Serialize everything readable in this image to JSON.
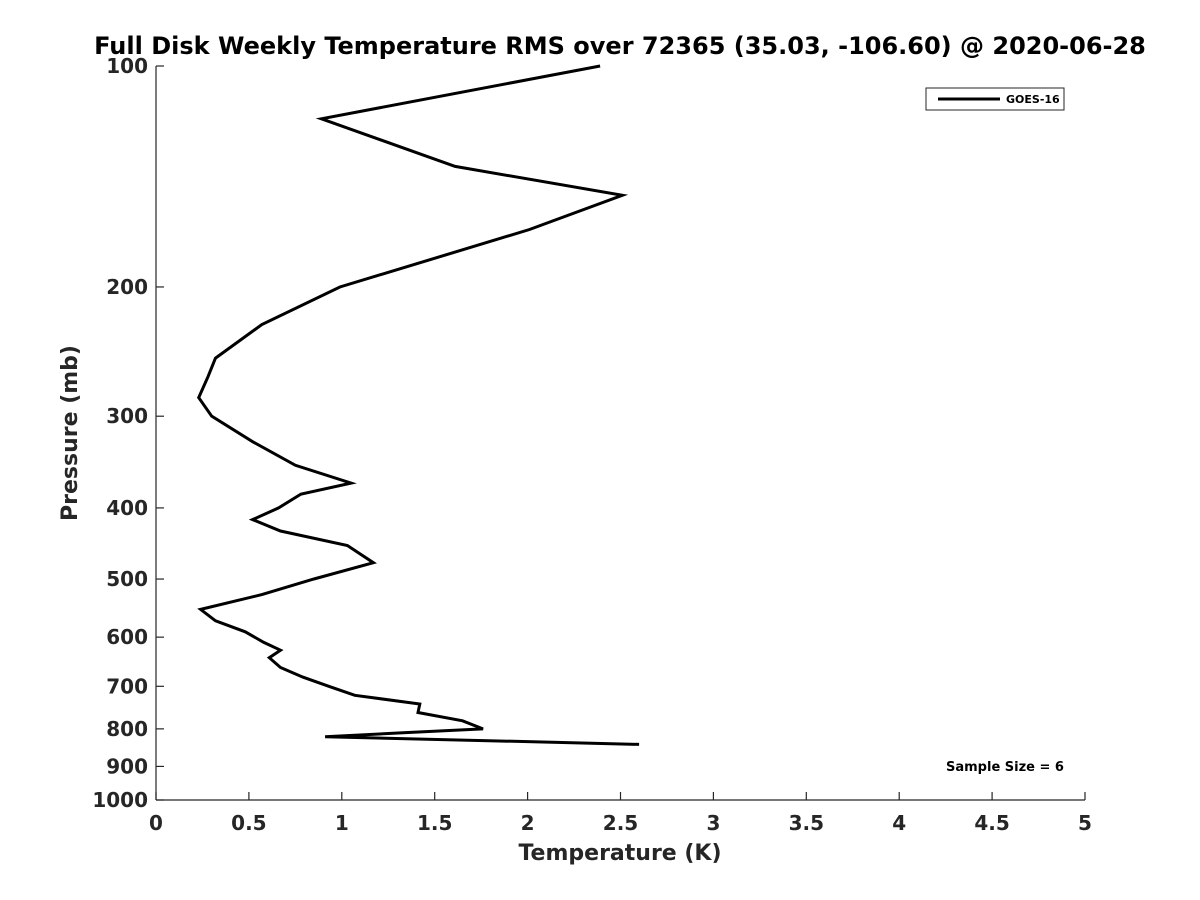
{
  "chart_data": {
    "type": "line",
    "title": "Full Disk Weekly Temperature RMS over 72365 (35.03, -106.60) @ 2020-06-28",
    "xlabel": "Temperature (K)",
    "ylabel": "Pressure (mb)",
    "xlim": [
      0,
      5
    ],
    "ylim": [
      100,
      1000
    ],
    "y_scale": "log",
    "y_reversed": true,
    "x_ticks": [
      "0",
      "0.5",
      "1",
      "1.5",
      "2",
      "2.5",
      "3",
      "3.5",
      "4",
      "4.5",
      "5"
    ],
    "y_ticks": [
      "100",
      "200",
      "300",
      "400",
      "500",
      "600",
      "700",
      "800",
      "900",
      "1000"
    ],
    "grid": false,
    "legend_position": "top-right",
    "series": [
      {
        "name": "GOES-16",
        "color": "#000000",
        "points": [
          {
            "x": 2.39,
            "p": 100
          },
          {
            "x": 0.89,
            "p": 118
          },
          {
            "x": 1.61,
            "p": 137
          },
          {
            "x": 2.51,
            "p": 150
          },
          {
            "x": 2.01,
            "p": 167
          },
          {
            "x": 0.99,
            "p": 200
          },
          {
            "x": 0.57,
            "p": 225
          },
          {
            "x": 0.32,
            "p": 250
          },
          {
            "x": 0.28,
            "p": 265
          },
          {
            "x": 0.23,
            "p": 283
          },
          {
            "x": 0.3,
            "p": 300
          },
          {
            "x": 0.52,
            "p": 325
          },
          {
            "x": 0.75,
            "p": 350
          },
          {
            "x": 1.05,
            "p": 370
          },
          {
            "x": 0.78,
            "p": 383
          },
          {
            "x": 0.66,
            "p": 400
          },
          {
            "x": 0.52,
            "p": 415
          },
          {
            "x": 0.67,
            "p": 430
          },
          {
            "x": 1.03,
            "p": 450
          },
          {
            "x": 1.17,
            "p": 475
          },
          {
            "x": 0.85,
            "p": 500
          },
          {
            "x": 0.57,
            "p": 525
          },
          {
            "x": 0.24,
            "p": 550
          },
          {
            "x": 0.32,
            "p": 570
          },
          {
            "x": 0.48,
            "p": 590
          },
          {
            "x": 0.58,
            "p": 610
          },
          {
            "x": 0.67,
            "p": 625
          },
          {
            "x": 0.61,
            "p": 640
          },
          {
            "x": 0.67,
            "p": 660
          },
          {
            "x": 0.79,
            "p": 680
          },
          {
            "x": 0.93,
            "p": 700
          },
          {
            "x": 1.07,
            "p": 720
          },
          {
            "x": 1.42,
            "p": 740
          },
          {
            "x": 1.41,
            "p": 760
          },
          {
            "x": 1.65,
            "p": 780
          },
          {
            "x": 1.76,
            "p": 800
          },
          {
            "x": 1.33,
            "p": 810
          },
          {
            "x": 0.91,
            "p": 820
          },
          {
            "x": 2.6,
            "p": 840
          }
        ]
      }
    ],
    "annotations": [
      "Sample Size = 6"
    ]
  }
}
